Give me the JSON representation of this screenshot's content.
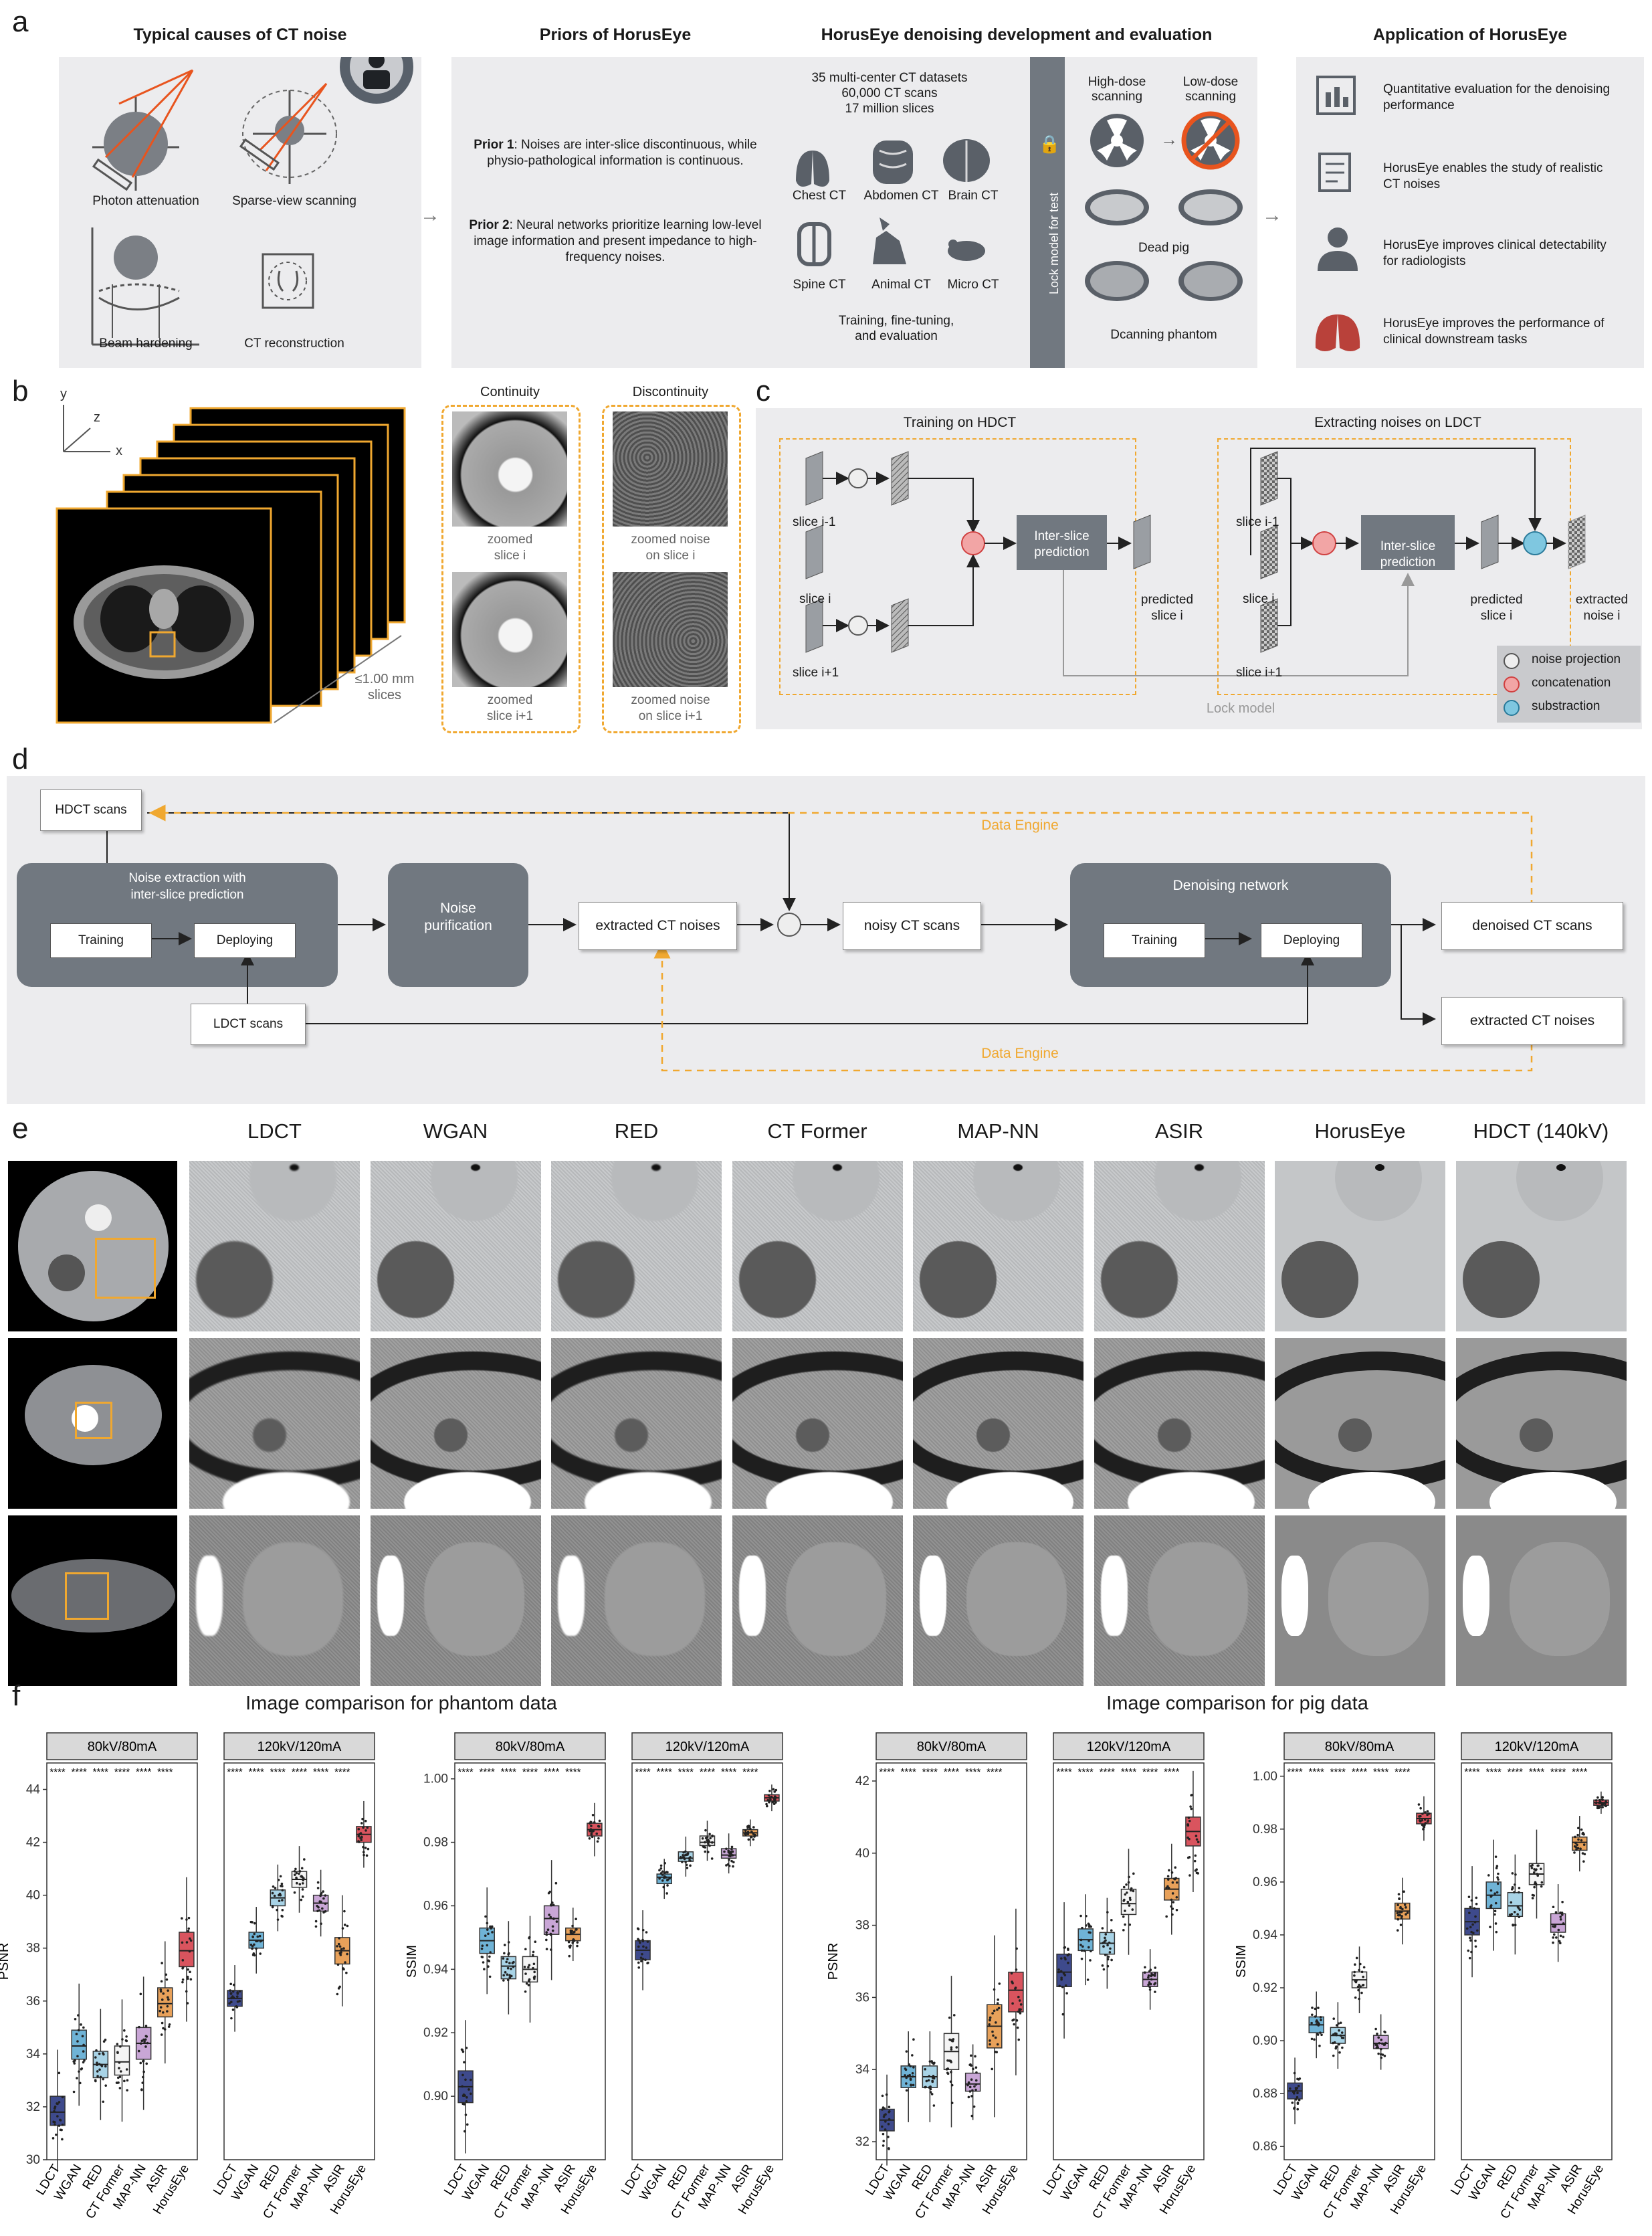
{
  "panel_letters": {
    "a": "a",
    "b": "b",
    "c": "c",
    "d": "d",
    "e": "e",
    "f": "f"
  },
  "a": {
    "causes_title": "Typical causes of CT noise",
    "causes": [
      "Photon attenuation",
      "Sparse-view scanning",
      "Beam hardening",
      "CT reconstruction"
    ],
    "priors_title": "Priors of HorusEye",
    "prior1_bold": "Prior 1",
    "prior1_text": ": Noises are inter-slice discontinuous, while physio-pathological information is continuous.",
    "prior2_bold": "Prior 2",
    "prior2_text": ": Neural networks prioritize learning low-level image information and present impedance to high-frequency noises.",
    "dev_title": "HorusEye denoising development and evaluation",
    "dataset_lines": [
      "35 multi-center CT datasets",
      "60,000 CT scans",
      "17 million slices"
    ],
    "organs": [
      "Chest CT",
      "Abdomen CT",
      "Brain CT",
      "Spine CT",
      "Animal CT",
      "Micro CT"
    ],
    "training_lines": [
      "Training, fine-tuning,",
      "and evaluation"
    ],
    "lock_text": "Lock model for test",
    "high_dose": [
      "High-dose",
      "scanning"
    ],
    "low_dose": [
      "Low-dose",
      "scanning"
    ],
    "dead_pig": "Dead pig",
    "phantom": "Dcanning phantom",
    "app_title": "Application of HorusEye",
    "apps": [
      [
        "Quantitative evaluation for the denoising",
        "performance"
      ],
      [
        "HorusEye enables the study of realistic",
        "CT noises"
      ],
      [
        "HorusEye improves clinical detectability",
        "for radiologists"
      ],
      [
        "HorusEye improves the performance of",
        "clinical downstream tasks"
      ]
    ]
  },
  "b": {
    "axes": {
      "y": "y",
      "z": "z",
      "x": "x"
    },
    "slices_label": [
      "≤1.00 mm",
      "slices"
    ],
    "continuity": "Continuity",
    "discontinuity": "Discontinuity",
    "zoom1": [
      "zoomed",
      "slice i"
    ],
    "zoom2": [
      "zoomed",
      "slice i+1"
    ],
    "noise1": [
      "zoomed noise",
      "on slice i"
    ],
    "noise2": [
      "zoomed noise",
      "on slice i+1"
    ]
  },
  "c": {
    "train_title": "Training on HDCT",
    "extract_title": "Extracting noises on LDCT",
    "slice_prev": "slice i-1",
    "slice_i": "slice i",
    "slice_next": "slice i+1",
    "interslice": [
      "Inter-slice",
      "prediction"
    ],
    "predicted": [
      "predicted",
      "slice i"
    ],
    "extracted": [
      "extracted",
      "noise i"
    ],
    "lock_model": "Lock model",
    "legend": [
      "noise projection",
      "concatenation",
      "substraction"
    ]
  },
  "d": {
    "hdct": "HDCT scans",
    "ldct": "LDCT scans",
    "extraction": [
      "Noise extraction with",
      "inter-slice prediction"
    ],
    "training": "Training",
    "deploying": "Deploying",
    "purification": [
      "Noise",
      "purification"
    ],
    "extracted_noises": "extracted CT noises",
    "noisy_scans": "noisy CT scans",
    "denoising_network": "Denoising network",
    "denoised": "denoised CT scans",
    "extracted_out": "extracted CT noises",
    "data_engine": "Data Engine"
  },
  "e": {
    "columns": [
      "LDCT",
      "WGAN",
      "RED",
      "CT Former",
      "MAP-NN",
      "ASIR",
      "HorusEye",
      "HDCT (140kV)"
    ]
  },
  "colors": {
    "accent": "#f0a830",
    "dark_box": "#717880",
    "panel_bg": "#ececee",
    "LDCT": "#3e4a8c",
    "WGAN": "#6fb3d6",
    "RED": "#a8d3e6",
    "CT Former": "#f4f4f4",
    "MAP-NN": "#c9a6d6",
    "ASIR": "#e8a15a",
    "HorusEye": "#d9545e"
  },
  "chart_data": [
    {
      "type": "box",
      "group_title": "Image comparison for phantom data",
      "title": "",
      "ylabel": "PSNR",
      "ylim": [
        30,
        45
      ],
      "yticks": [
        30,
        32,
        34,
        36,
        38,
        40,
        42,
        44
      ],
      "facets": [
        {
          "name": "80kV/80mA",
          "categories": [
            "LDCT",
            "WGAN",
            "RED",
            "CT Former",
            "MAP-NN",
            "ASIR",
            "HorusEye"
          ],
          "medians": [
            31.8,
            34.3,
            33.6,
            33.7,
            34.4,
            35.9,
            37.9
          ],
          "q1": [
            31.3,
            33.8,
            33.1,
            33.2,
            33.8,
            35.4,
            37.3
          ],
          "q3": [
            32.4,
            34.9,
            34.1,
            34.3,
            35.0,
            36.5,
            38.6
          ],
          "significance": [
            "****",
            "****",
            "****",
            "****",
            "****",
            "****"
          ]
        },
        {
          "name": "120kV/120mA",
          "categories": [
            "LDCT",
            "WGAN",
            "RED",
            "CT Former",
            "MAP-NN",
            "ASIR",
            "HorusEye"
          ],
          "medians": [
            36.1,
            38.3,
            39.9,
            40.6,
            39.7,
            37.9,
            42.3
          ],
          "q1": [
            35.8,
            38.0,
            39.6,
            40.3,
            39.4,
            37.4,
            42.0
          ],
          "q3": [
            36.4,
            38.6,
            40.2,
            40.9,
            40.0,
            38.4,
            42.6
          ],
          "significance": [
            "****",
            "****",
            "****",
            "****",
            "****",
            "****"
          ]
        }
      ]
    },
    {
      "type": "box",
      "group_title": "Image comparison for phantom data",
      "title": "",
      "ylabel": "SSIM",
      "ylim": [
        0.88,
        1.005
      ],
      "yticks": [
        0.9,
        0.92,
        0.94,
        0.96,
        0.98,
        1.0
      ],
      "facets": [
        {
          "name": "80kV/80mA",
          "categories": [
            "LDCT",
            "WGAN",
            "RED",
            "CT Former",
            "MAP-NN",
            "ASIR",
            "HorusEye"
          ],
          "medians": [
            0.903,
            0.949,
            0.941,
            0.94,
            0.956,
            0.951,
            0.984
          ],
          "q1": [
            0.898,
            0.945,
            0.937,
            0.936,
            0.951,
            0.949,
            0.982
          ],
          "q3": [
            0.908,
            0.953,
            0.944,
            0.944,
            0.96,
            0.953,
            0.986
          ],
          "significance": [
            "****",
            "****",
            "****",
            "****",
            "****",
            "****"
          ]
        },
        {
          "name": "120kV/120mA",
          "categories": [
            "LDCT",
            "WGAN",
            "RED",
            "CT Former",
            "MAP-NN",
            "ASIR",
            "HorusEye"
          ],
          "medians": [
            0.946,
            0.969,
            0.975,
            0.98,
            0.976,
            0.983,
            0.994
          ],
          "q1": [
            0.943,
            0.967,
            0.974,
            0.979,
            0.975,
            0.982,
            0.993
          ],
          "q3": [
            0.949,
            0.97,
            0.977,
            0.982,
            0.978,
            0.984,
            0.995
          ],
          "significance": [
            "****",
            "****",
            "****",
            "****",
            "****",
            "****"
          ]
        }
      ]
    },
    {
      "type": "box",
      "group_title": "Image comparison for pig data",
      "title": "",
      "ylabel": "PSNR",
      "ylim": [
        31.5,
        42.5
      ],
      "yticks": [
        32,
        34,
        36,
        38,
        40,
        42
      ],
      "facets": [
        {
          "name": "80kV/80mA",
          "categories": [
            "LDCT",
            "WGAN",
            "RED",
            "CT Former",
            "MAP-NN",
            "ASIR",
            "HorusEye"
          ],
          "medians": [
            32.6,
            33.8,
            33.8,
            34.5,
            33.6,
            35.2,
            36.2
          ],
          "q1": [
            32.3,
            33.5,
            33.5,
            34.0,
            33.4,
            34.6,
            35.6
          ],
          "q3": [
            32.9,
            34.1,
            34.1,
            35.0,
            33.9,
            35.8,
            36.7
          ],
          "significance": [
            "****",
            "****",
            "****",
            "****",
            "****",
            "****"
          ]
        },
        {
          "name": "120kV/120mA",
          "categories": [
            "LDCT",
            "WGAN",
            "RED",
            "CT Former",
            "MAP-NN",
            "ASIR",
            "HorusEye"
          ],
          "medians": [
            36.7,
            37.6,
            37.5,
            38.6,
            36.5,
            39.0,
            40.6
          ],
          "q1": [
            36.3,
            37.3,
            37.2,
            38.3,
            36.3,
            38.7,
            40.2
          ],
          "q3": [
            37.2,
            37.9,
            37.8,
            39.0,
            36.7,
            39.3,
            41.0
          ],
          "significance": [
            "****",
            "****",
            "****",
            "****",
            "****",
            "****"
          ]
        }
      ]
    },
    {
      "type": "box",
      "group_title": "Image comparison for pig data",
      "title": "",
      "ylabel": "SSIM",
      "ylim": [
        0.855,
        1.005
      ],
      "yticks": [
        0.86,
        0.88,
        0.9,
        0.92,
        0.94,
        0.96,
        0.98,
        1.0
      ],
      "facets": [
        {
          "name": "80kV/80mA",
          "categories": [
            "LDCT",
            "WGAN",
            "RED",
            "CT Former",
            "MAP-NN",
            "ASIR",
            "HorusEye"
          ],
          "medians": [
            0.881,
            0.906,
            0.902,
            0.923,
            0.899,
            0.949,
            0.984
          ],
          "q1": [
            0.878,
            0.903,
            0.899,
            0.92,
            0.897,
            0.946,
            0.982
          ],
          "q3": [
            0.884,
            0.909,
            0.905,
            0.926,
            0.902,
            0.952,
            0.986
          ],
          "significance": [
            "****",
            "****",
            "****",
            "****",
            "****",
            "****"
          ]
        },
        {
          "name": "120kV/120mA",
          "categories": [
            "LDCT",
            "WGAN",
            "RED",
            "CT Former",
            "MAP-NN",
            "ASIR",
            "HorusEye"
          ],
          "medians": [
            0.945,
            0.955,
            0.951,
            0.963,
            0.944,
            0.975,
            0.99
          ],
          "q1": [
            0.94,
            0.95,
            0.947,
            0.959,
            0.941,
            0.972,
            0.989
          ],
          "q3": [
            0.95,
            0.96,
            0.956,
            0.967,
            0.948,
            0.977,
            0.991
          ],
          "significance": [
            "****",
            "****",
            "****",
            "****",
            "****",
            "****"
          ]
        }
      ]
    }
  ]
}
